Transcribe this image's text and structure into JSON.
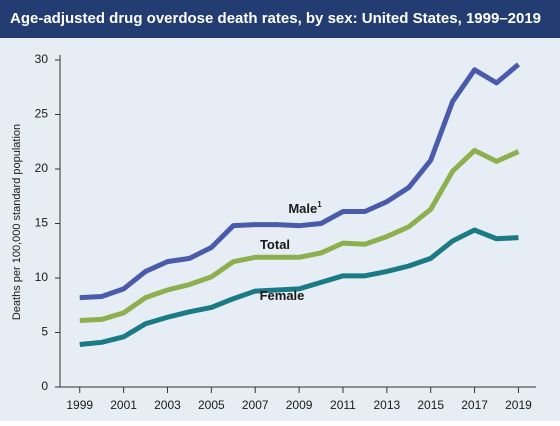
{
  "chart_data": {
    "type": "line",
    "title": "Age-adjusted drug overdose death rates, by sex: United States, 1999–2019",
    "y_label": "Deaths per 100,000 standard population",
    "x": [
      1999,
      2000,
      2001,
      2002,
      2003,
      2004,
      2005,
      2006,
      2007,
      2008,
      2009,
      2010,
      2011,
      2012,
      2013,
      2014,
      2015,
      2016,
      2017,
      2018,
      2019
    ],
    "series": [
      {
        "name": "Male",
        "name_superscript": "1",
        "color": "#4b5bab",
        "values": [
          8.2,
          8.3,
          9.0,
          10.6,
          11.5,
          11.8,
          12.8,
          14.8,
          14.9,
          14.9,
          14.8,
          15.0,
          16.1,
          16.1,
          17.0,
          18.3,
          20.8,
          26.2,
          29.1,
          27.9,
          29.6
        ]
      },
      {
        "name": "Total",
        "color": "#8db04f",
        "values": [
          6.1,
          6.2,
          6.8,
          8.2,
          8.9,
          9.4,
          10.1,
          11.5,
          11.9,
          11.9,
          11.9,
          12.3,
          13.2,
          13.1,
          13.8,
          14.7,
          16.3,
          19.8,
          21.7,
          20.7,
          21.6
        ]
      },
      {
        "name": "Female",
        "color": "#1b7b84",
        "values": [
          3.9,
          4.1,
          4.6,
          5.8,
          6.4,
          6.9,
          7.3,
          8.1,
          8.8,
          8.9,
          9.0,
          9.6,
          10.2,
          10.2,
          10.6,
          11.1,
          11.8,
          13.4,
          14.4,
          13.6,
          13.7
        ]
      }
    ],
    "xlim": [
      1998.1,
      2019.8
    ],
    "xticks": [
      1999,
      2001,
      2003,
      2005,
      2007,
      2009,
      2011,
      2013,
      2015,
      2017,
      2019
    ],
    "ylim": [
      0,
      30
    ],
    "yticks": [
      0,
      5,
      10,
      15,
      20,
      25,
      30
    ]
  }
}
